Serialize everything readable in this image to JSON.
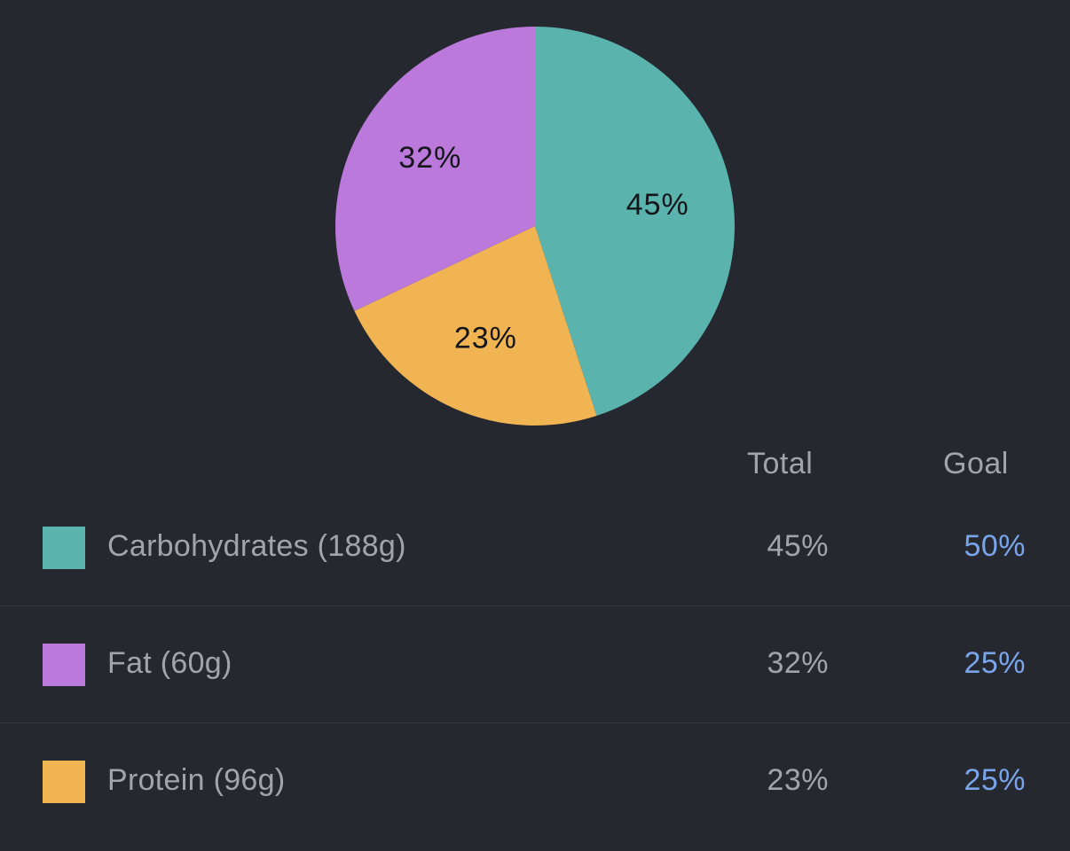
{
  "colors": {
    "background": "#262830",
    "carbohydrates": "#5bb3ae",
    "fat": "#bb79dc",
    "protein": "#f1b453",
    "goal_text": "#7aa5ea"
  },
  "chart_data": {
    "type": "pie",
    "categories": [
      "Carbohydrates",
      "Fat",
      "Protein"
    ],
    "values": [
      45,
      32,
      23
    ],
    "slice_labels": [
      "45%",
      "32%",
      "23%"
    ],
    "colors": [
      "#5bb3ae",
      "#bb79dc",
      "#f1b453"
    ],
    "start_angle": "12 o'clock",
    "direction": "clockwise",
    "order_clockwise": [
      "Carbohydrates",
      "Protein",
      "Fat"
    ]
  },
  "table": {
    "headers": {
      "total": "Total",
      "goal": "Goal"
    },
    "rows": [
      {
        "label": "Carbohydrates (188g)",
        "total": "45%",
        "goal": "50%",
        "color": "#5bb3ae"
      },
      {
        "label": "Fat (60g)",
        "total": "32%",
        "goal": "25%",
        "color": "#bb79dc"
      },
      {
        "label": "Protein (96g)",
        "total": "23%",
        "goal": "25%",
        "color": "#f1b453"
      }
    ]
  }
}
